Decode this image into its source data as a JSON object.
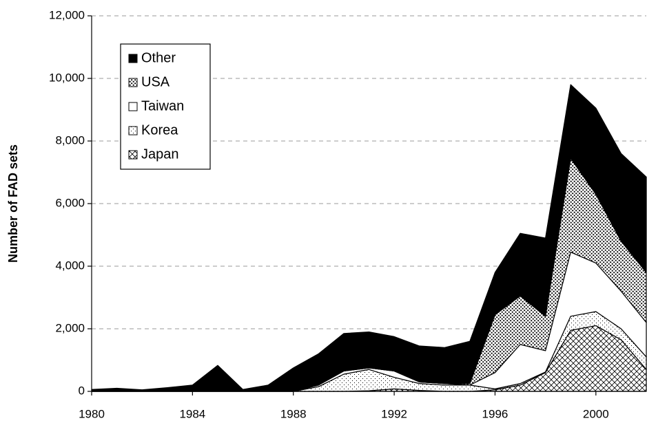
{
  "chart_data": {
    "type": "stacked-area",
    "y_label": "Number of FAD sets",
    "x": [
      1980,
      1981,
      1982,
      1983,
      1984,
      1985,
      1986,
      1987,
      1988,
      1989,
      1990,
      1991,
      1992,
      1993,
      1994,
      1995,
      1996,
      1997,
      1998,
      1999,
      2000,
      2001,
      2002
    ],
    "xlim": [
      1980,
      2002
    ],
    "xticks": [
      1980,
      1984,
      1988,
      1992,
      1996,
      2000
    ],
    "ylim": [
      0,
      12000
    ],
    "yticks": [
      0,
      {
        "value": 2000,
        "label": "2,000"
      },
      {
        "value": 4000,
        "label": "4,000"
      },
      {
        "value": 6000,
        "label": "6,000"
      },
      {
        "value": 8000,
        "label": "8,000"
      },
      {
        "value": 10000,
        "label": "10,000"
      },
      {
        "value": 12000,
        "label": "12,000"
      }
    ],
    "grid": true,
    "series": [
      {
        "name": "Japan",
        "color": "#000000",
        "pattern": "crosshatch",
        "values": [
          0,
          0,
          0,
          0,
          0,
          0,
          0,
          0,
          0,
          0,
          0,
          20,
          80,
          30,
          0,
          0,
          50,
          200,
          600,
          1950,
          2100,
          1650,
          700
        ]
      },
      {
        "name": "Korea",
        "color": "#000000",
        "pattern": "sparse-dots",
        "values": [
          0,
          0,
          0,
          0,
          0,
          0,
          0,
          0,
          0,
          150,
          550,
          680,
          370,
          220,
          200,
          200,
          30,
          50,
          20,
          450,
          450,
          350,
          400
        ]
      },
      {
        "name": "Taiwan",
        "color": "#ffffff",
        "pattern": "solid",
        "values": [
          0,
          0,
          0,
          0,
          0,
          0,
          0,
          0,
          0,
          50,
          100,
          50,
          200,
          50,
          50,
          0,
          520,
          1250,
          680,
          2050,
          1550,
          1200,
          1100
        ]
      },
      {
        "name": "USA",
        "color": "#000000",
        "pattern": "dense-dots",
        "values": [
          0,
          0,
          0,
          0,
          0,
          0,
          0,
          0,
          0,
          0,
          0,
          0,
          0,
          0,
          0,
          50,
          1850,
          1550,
          1100,
          3000,
          2200,
          1600,
          1600
        ]
      },
      {
        "name": "Other",
        "color": "#000000",
        "pattern": "solid",
        "values": [
          60,
          100,
          50,
          120,
          200,
          830,
          60,
          200,
          750,
          1000,
          1200,
          1150,
          1100,
          1150,
          1150,
          1350,
          1350,
          2000,
          2500,
          2350,
          2750,
          2800,
          3050
        ]
      }
    ]
  }
}
